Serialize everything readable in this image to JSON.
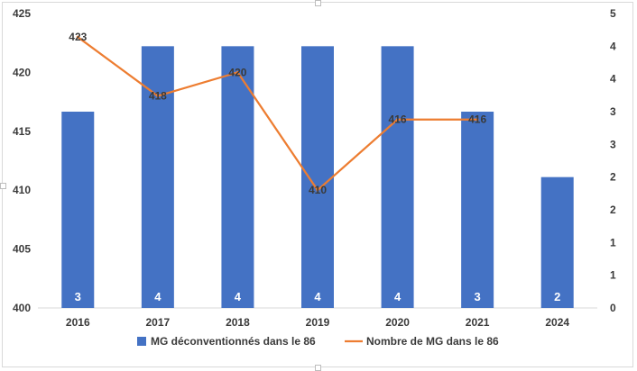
{
  "chart_data": {
    "type": "bar",
    "categories": [
      "2016",
      "2017",
      "2018",
      "2019",
      "2020",
      "2021",
      "2024"
    ],
    "series": [
      {
        "name": "MG déconventionnés dans le 86",
        "type": "bar",
        "axis": "secondary",
        "values": [
          3,
          4,
          4,
          4,
          4,
          3,
          2
        ],
        "data_labels": [
          "3",
          "4",
          "4",
          "4",
          "4",
          "3",
          "2"
        ],
        "color": "#4472C4"
      },
      {
        "name": "Nombre de MG dans le 86",
        "type": "line",
        "axis": "primary",
        "values": [
          423,
          418,
          420,
          410,
          416,
          416,
          null
        ],
        "data_labels": [
          "423",
          "418",
          "420",
          "410",
          "416",
          "416",
          ""
        ],
        "color": "#ED7D31"
      }
    ],
    "y_primary": {
      "range": [
        400,
        425
      ],
      "ticks": [
        "400",
        "405",
        "410",
        "415",
        "420",
        "425"
      ]
    },
    "y_secondary": {
      "range": [
        0,
        4.5
      ],
      "tick_values": [
        0,
        0.5,
        1,
        1.5,
        2,
        2.5,
        3,
        3.5,
        4,
        4.5
      ],
      "tick_labels": [
        "0",
        "1",
        "1",
        "2",
        "2",
        "3",
        "3",
        "4",
        "4",
        "5"
      ]
    },
    "grid": false,
    "legend_position": "bottom",
    "title": "",
    "xlabel": "",
    "ylabel": ""
  }
}
